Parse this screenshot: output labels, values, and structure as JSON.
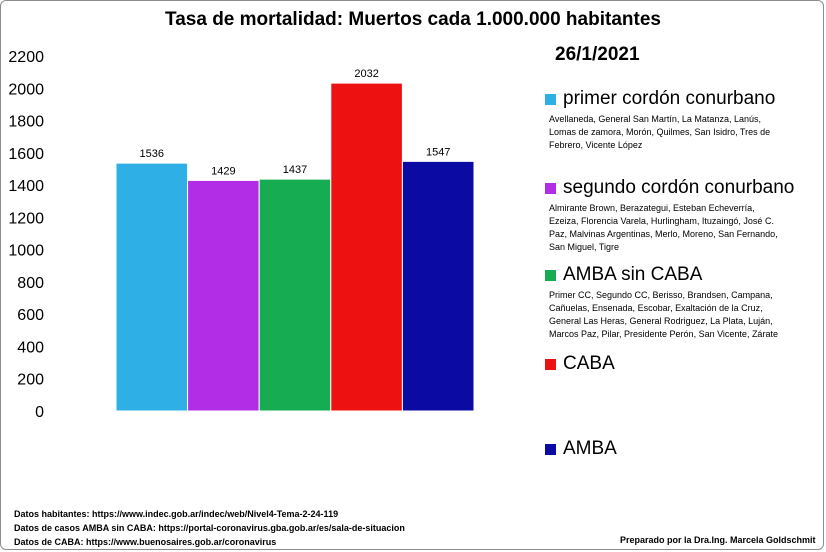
{
  "chart_data": {
    "type": "bar",
    "title": "Tasa de mortalidad: Muertos cada 1.000.000 habitantes",
    "subtitle": "26/1/2021",
    "categories": [
      "primer cordón conurbano",
      "segundo cordón conurbano",
      "AMBA sin CABA",
      "CABA",
      "AMBA"
    ],
    "values": [
      1536,
      1429,
      1437,
      2032,
      1547
    ],
    "colors": [
      "#2eb0e6",
      "#b12ee6",
      "#16ad52",
      "#ee1111",
      "#0b0ba3"
    ],
    "yticks": [
      "0",
      "200",
      "400",
      "600",
      "800",
      "1000",
      "1200",
      "1400",
      "1600",
      "1800",
      "2000",
      "2200"
    ],
    "ylim": [
      0,
      2200
    ],
    "grid": false,
    "legend_position": "right",
    "xlabel": "",
    "ylabel": ""
  },
  "legend": [
    {
      "name": "primer cordón conurbano",
      "desc": "Avellaneda, General San Martín, La Matanza, Lanús, Lomas de zamora, Morón, Quilmes, San Isidro, Tres de Febrero, Vicente López"
    },
    {
      "name": "segundo cordón conurbano",
      "desc": "Almirante Brown, Berazategui, Esteban Echeverría, Ezeiza, Florencia Varela, Hurlingham, Ituzaingó, José C. Paz, Malvinas Argentinas, Merlo, Moreno, San Fernando, San Miguel, Tigre"
    },
    {
      "name": "AMBA sin CABA",
      "desc": "Primer CC, Segundo CC, Berisso, Brandsen, Campana, Cañuelas, Ensenada, Escobar, Exaltación de la Cruz, General Las Heras, General Rodriguez, La Plata, Luján, Marcos Paz, Pilar, Presidente Perón, San Vicente, Zárate"
    },
    {
      "name": "CABA",
      "desc": ""
    },
    {
      "name": "AMBA",
      "desc": ""
    }
  ],
  "sources": {
    "line1": "Datos habitantes: https://www.indec.gob.ar/indec/web/Nivel4-Tema-2-24-119",
    "line2": "Datos de casos AMBA sin CABA: https://portal-coronavirus.gba.gob.ar/es/sala-de-situacion",
    "line3": "Datos de CABA: https://www.buenosaires.gob.ar/coronavirus"
  },
  "author": "Preparado por la Dra.Ing. Marcela Goldschmit"
}
